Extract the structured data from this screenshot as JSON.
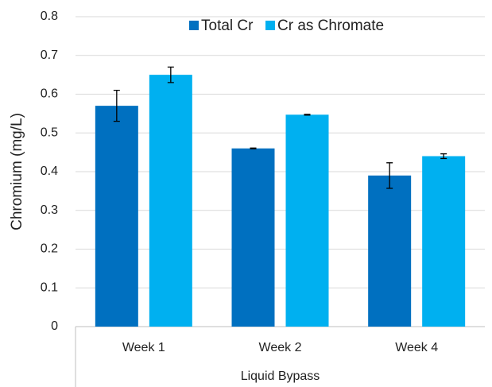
{
  "chart_data": {
    "type": "bar",
    "y_label": "Chromium (mg/L)",
    "categories": [
      "Week 1",
      "Week 2",
      "Week 4"
    ],
    "group_label": "Liquid Bypass",
    "series": [
      {
        "name": "Total Cr",
        "color": "#0070c0",
        "values": [
          0.57,
          0.46,
          0.39
        ],
        "errors": [
          0.04,
          0.001,
          0.033
        ]
      },
      {
        "name": "Cr as Chromate",
        "color": "#00b0f0",
        "values": [
          0.65,
          0.547,
          0.44
        ],
        "errors": [
          0.02,
          0.001,
          0.006
        ]
      }
    ],
    "ylim": [
      0,
      0.8
    ],
    "yticks": [
      0,
      0.1,
      0.2,
      0.3,
      0.4,
      0.5,
      0.6,
      0.7,
      0.8
    ],
    "grid": true,
    "legend": "top"
  }
}
